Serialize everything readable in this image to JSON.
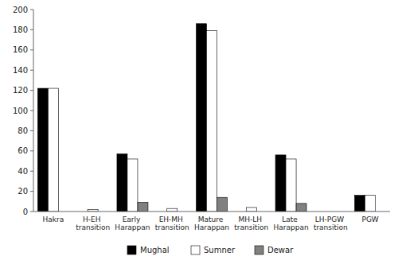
{
  "chart_data": {
    "type": "bar",
    "categories": [
      "Hakra",
      "H-EH transition",
      "Early Harappan",
      "EH-MH transition",
      "Mature Harappan",
      "MH-LH transition",
      "Late Harappan",
      "LH-PGW transition",
      "PGW"
    ],
    "series": [
      {
        "name": "Mughal",
        "color": "#000000",
        "values": [
          122,
          0,
          57,
          0,
          186,
          0,
          56,
          0,
          16
        ]
      },
      {
        "name": "Sumner",
        "color": "#ffffff",
        "values": [
          122,
          2,
          52,
          3,
          179,
          4,
          52,
          0,
          16
        ]
      },
      {
        "name": "Dewar",
        "color": "#808080",
        "values": [
          0,
          0,
          9,
          0,
          14,
          0,
          8,
          0,
          0
        ]
      }
    ],
    "ylim": [
      0,
      200
    ],
    "yticks": [
      0,
      20,
      40,
      60,
      80,
      100,
      120,
      140,
      160,
      180,
      200
    ],
    "grid": false,
    "legend": "bottom"
  }
}
